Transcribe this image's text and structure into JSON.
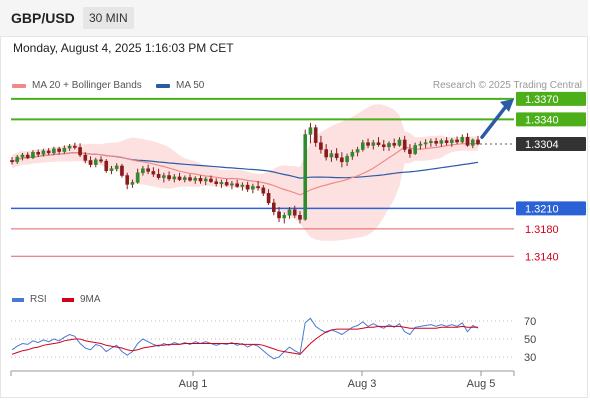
{
  "header": {
    "symbol": "GBP/USD",
    "timeframe": "30 MIN"
  },
  "datetime": "Monday, August 4, 2025 1:16:03 PM CET",
  "legend": {
    "ma20_label": "MA 20 + Bollinger Bands",
    "ma50_label": "MA 50",
    "research": "Research © 2025 Trading Central",
    "colors": {
      "ma20": "#f08a8a",
      "ma50": "#2b5aa6"
    }
  },
  "levels": [
    {
      "value": 1.337,
      "label": "1.3370",
      "kind": "resistance"
    },
    {
      "value": 1.334,
      "label": "1.3340",
      "kind": "resistance"
    },
    {
      "value": 1.3304,
      "label": "1.3304",
      "kind": "last"
    },
    {
      "value": 1.321,
      "label": "1.3210",
      "kind": "pivot"
    },
    {
      "value": 1.318,
      "label": "1.3180",
      "kind": "support"
    },
    {
      "value": 1.314,
      "label": "1.3140",
      "kind": "support"
    }
  ],
  "indicator_legend": {
    "rsi_label": "RSI",
    "ma9_label": "9MA",
    "colors": {
      "rsi": "#4a78d4",
      "ma9": "#d0021b"
    }
  },
  "rsi_ticks": [
    "70",
    "50",
    "30"
  ],
  "x_ticks": [
    "Aug 1",
    "Aug 3",
    "Aug 5"
  ],
  "chart_data": {
    "type": "candlestick",
    "price_range": [
      1.312,
      1.338
    ],
    "rsi_range": [
      20,
      80
    ],
    "candles": [
      [
        1.328,
        1.3285,
        1.3274,
        1.3278
      ],
      [
        1.3278,
        1.3288,
        1.3275,
        1.3285
      ],
      [
        1.3285,
        1.3291,
        1.328,
        1.3288
      ],
      [
        1.3288,
        1.3292,
        1.3282,
        1.3284
      ],
      [
        1.3284,
        1.3295,
        1.3282,
        1.3292
      ],
      [
        1.3292,
        1.3296,
        1.3285,
        1.3289
      ],
      [
        1.3289,
        1.3297,
        1.3286,
        1.3294
      ],
      [
        1.3294,
        1.3298,
        1.3288,
        1.3291
      ],
      [
        1.3291,
        1.33,
        1.3288,
        1.3297
      ],
      [
        1.3297,
        1.33,
        1.3289,
        1.3293
      ],
      [
        1.3293,
        1.3302,
        1.329,
        1.3298
      ],
      [
        1.3298,
        1.3304,
        1.3294,
        1.3301
      ],
      [
        1.3301,
        1.3306,
        1.3296,
        1.3299
      ],
      [
        1.3299,
        1.3305,
        1.3285,
        1.3288
      ],
      [
        1.3288,
        1.3292,
        1.3276,
        1.328
      ],
      [
        1.328,
        1.3286,
        1.327,
        1.3274
      ],
      [
        1.3274,
        1.3284,
        1.327,
        1.3281
      ],
      [
        1.3281,
        1.3286,
        1.3276,
        1.3279
      ],
      [
        1.3279,
        1.3282,
        1.3262,
        1.3265
      ],
      [
        1.3265,
        1.3272,
        1.326,
        1.3268
      ],
      [
        1.3268,
        1.3276,
        1.3264,
        1.3272
      ],
      [
        1.3272,
        1.3275,
        1.3255,
        1.3258
      ],
      [
        1.3258,
        1.3262,
        1.3238,
        1.3245
      ],
      [
        1.3245,
        1.3252,
        1.324,
        1.3248
      ],
      [
        1.3248,
        1.3268,
        1.3246,
        1.3262
      ],
      [
        1.3262,
        1.3272,
        1.3258,
        1.3268
      ],
      [
        1.3268,
        1.3274,
        1.326,
        1.3264
      ],
      [
        1.3264,
        1.327,
        1.3256,
        1.326
      ],
      [
        1.326,
        1.3268,
        1.3252,
        1.3255
      ],
      [
        1.3255,
        1.3262,
        1.3248,
        1.3258
      ],
      [
        1.3258,
        1.3264,
        1.325,
        1.3253
      ],
      [
        1.3253,
        1.326,
        1.3248,
        1.3256
      ],
      [
        1.3256,
        1.3262,
        1.325,
        1.3252
      ],
      [
        1.3252,
        1.3258,
        1.3248,
        1.3255
      ],
      [
        1.3255,
        1.326,
        1.3249,
        1.3251
      ],
      [
        1.3251,
        1.3257,
        1.3246,
        1.3254
      ],
      [
        1.3254,
        1.3258,
        1.3246,
        1.325
      ],
      [
        1.325,
        1.3256,
        1.3244,
        1.3253
      ],
      [
        1.3253,
        1.3258,
        1.3247,
        1.3249
      ],
      [
        1.3249,
        1.3254,
        1.3242,
        1.3246
      ],
      [
        1.3246,
        1.3252,
        1.324,
        1.3248
      ],
      [
        1.3248,
        1.3253,
        1.3242,
        1.3244
      ],
      [
        1.3244,
        1.325,
        1.3238,
        1.3246
      ],
      [
        1.3246,
        1.3252,
        1.324,
        1.3242
      ],
      [
        1.3242,
        1.3248,
        1.3236,
        1.3244
      ],
      [
        1.3244,
        1.3249,
        1.3234,
        1.3238
      ],
      [
        1.3238,
        1.3246,
        1.3232,
        1.3242
      ],
      [
        1.3242,
        1.325,
        1.3236,
        1.324
      ],
      [
        1.324,
        1.3244,
        1.3228,
        1.3232
      ],
      [
        1.3232,
        1.3238,
        1.3215,
        1.3218
      ],
      [
        1.3218,
        1.3224,
        1.32,
        1.3205
      ],
      [
        1.3205,
        1.3212,
        1.319,
        1.3196
      ],
      [
        1.3196,
        1.3204,
        1.3188,
        1.32
      ],
      [
        1.32,
        1.3212,
        1.3195,
        1.3208
      ],
      [
        1.3208,
        1.3214,
        1.3196,
        1.32
      ],
      [
        1.32,
        1.3206,
        1.3188,
        1.3194
      ],
      [
        1.3194,
        1.3325,
        1.3192,
        1.3318
      ],
      [
        1.3318,
        1.3335,
        1.3305,
        1.3328
      ],
      [
        1.3328,
        1.3332,
        1.33,
        1.3306
      ],
      [
        1.3306,
        1.3316,
        1.329,
        1.3296
      ],
      [
        1.3296,
        1.3304,
        1.328,
        1.3285
      ],
      [
        1.3285,
        1.3295,
        1.3278,
        1.329
      ],
      [
        1.329,
        1.3298,
        1.328,
        1.3284
      ],
      [
        1.3284,
        1.3292,
        1.327,
        1.3278
      ],
      [
        1.3278,
        1.329,
        1.3272,
        1.3286
      ],
      [
        1.3286,
        1.3296,
        1.3281,
        1.3292
      ],
      [
        1.3292,
        1.33,
        1.3286,
        1.3296
      ],
      [
        1.3296,
        1.331,
        1.3293,
        1.3306
      ],
      [
        1.3306,
        1.3312,
        1.3298,
        1.3302
      ],
      [
        1.3302,
        1.331,
        1.3296,
        1.3306
      ],
      [
        1.3306,
        1.3314,
        1.33,
        1.3303
      ],
      [
        1.3303,
        1.331,
        1.3294,
        1.33
      ],
      [
        1.33,
        1.3308,
        1.3294,
        1.3305
      ],
      [
        1.3305,
        1.3312,
        1.3298,
        1.3302
      ],
      [
        1.3302,
        1.3314,
        1.33,
        1.331
      ],
      [
        1.331,
        1.3316,
        1.3292,
        1.3296
      ],
      [
        1.3296,
        1.3304,
        1.3284,
        1.329
      ],
      [
        1.329,
        1.3306,
        1.3288,
        1.3302
      ],
      [
        1.3302,
        1.3308,
        1.3296,
        1.3304
      ],
      [
        1.3304,
        1.3311,
        1.3298,
        1.3306
      ],
      [
        1.3306,
        1.3312,
        1.33,
        1.3308
      ],
      [
        1.3308,
        1.3313,
        1.3301,
        1.3305
      ],
      [
        1.3305,
        1.3312,
        1.33,
        1.3309
      ],
      [
        1.3309,
        1.3314,
        1.3302,
        1.3306
      ],
      [
        1.3306,
        1.3313,
        1.33,
        1.331
      ],
      [
        1.331,
        1.3315,
        1.3304,
        1.3307
      ],
      [
        1.3307,
        1.3318,
        1.3305,
        1.3314
      ],
      [
        1.3314,
        1.332,
        1.33,
        1.3302
      ],
      [
        1.3302,
        1.3312,
        1.3298,
        1.331
      ],
      [
        1.331,
        1.3316,
        1.3302,
        1.3304
      ]
    ],
    "rsi": [
      38,
      42,
      45,
      44,
      48,
      46,
      49,
      47,
      50,
      48,
      52,
      55,
      53,
      45,
      40,
      38,
      44,
      42,
      36,
      40,
      43,
      36,
      32,
      36,
      45,
      50,
      47,
      44,
      42,
      45,
      43,
      46,
      44,
      46,
      44,
      47,
      45,
      47,
      45,
      43,
      45,
      44,
      46,
      43,
      45,
      41,
      44,
      42,
      37,
      32,
      28,
      30,
      36,
      41,
      37,
      34,
      68,
      73,
      64,
      60,
      57,
      60,
      58,
      55,
      59,
      63,
      65,
      69,
      64,
      67,
      64,
      62,
      66,
      63,
      67,
      58,
      55,
      63,
      64,
      65,
      66,
      64,
      66,
      64,
      66,
      64,
      68,
      58,
      65,
      62
    ],
    "rsi_ma9": [
      33,
      35,
      37,
      38,
      40,
      41,
      43,
      44,
      45,
      46,
      48,
      49,
      50,
      50,
      48,
      47,
      46,
      45,
      43,
      42,
      41,
      40,
      38,
      37,
      38,
      40,
      41,
      42,
      43,
      43,
      44,
      44,
      44,
      45,
      45,
      45,
      45,
      45,
      45,
      45,
      45,
      45,
      45,
      45,
      44,
      44,
      44,
      44,
      43,
      41,
      39,
      37,
      36,
      35,
      34,
      33,
      39,
      45,
      50,
      54,
      58,
      60,
      61,
      61,
      61,
      61,
      61,
      62,
      63,
      63,
      64,
      64,
      64,
      64,
      64,
      63,
      62,
      62,
      62,
      62,
      62,
      62,
      63,
      63,
      63,
      63,
      64,
      63,
      63,
      63
    ]
  }
}
